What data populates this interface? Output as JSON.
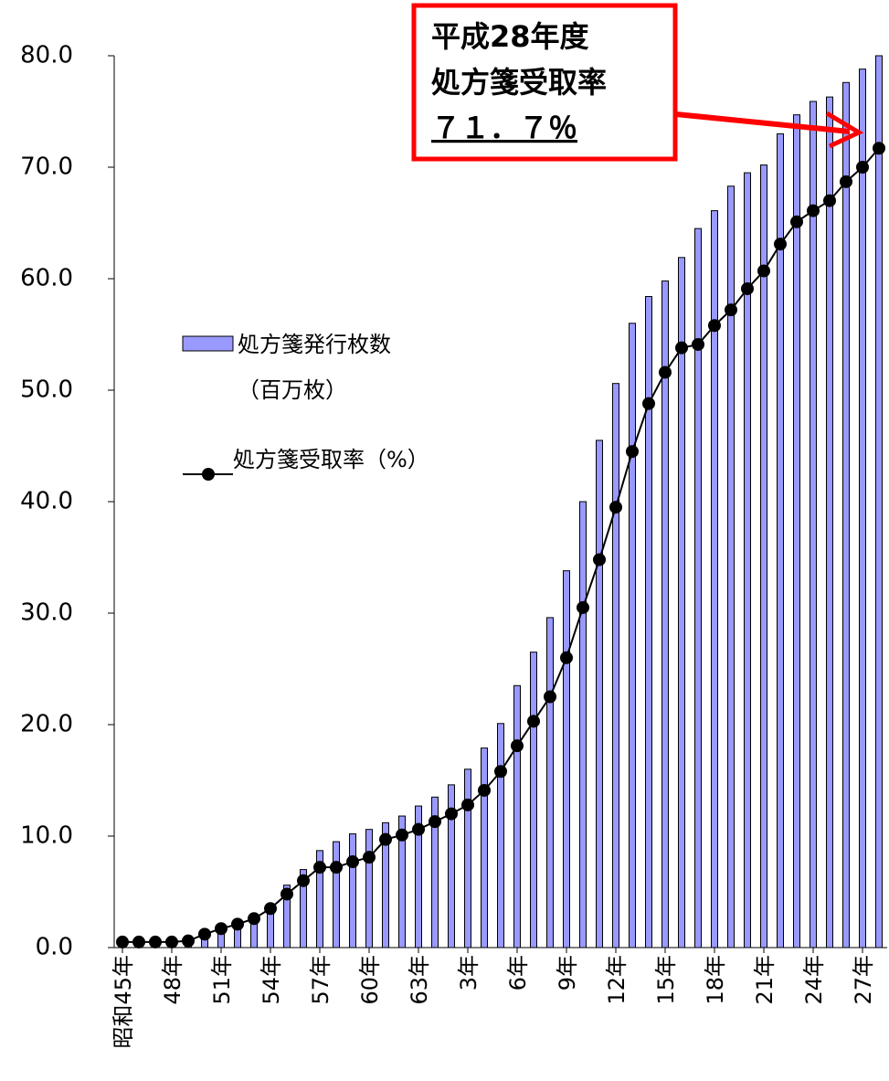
{
  "chart_data": {
    "type": "bar_line",
    "categories": [
      "昭和45年",
      null,
      null,
      "48年",
      null,
      null,
      "51年",
      null,
      null,
      "54年",
      null,
      null,
      "57年",
      null,
      null,
      "60年",
      null,
      null,
      "63年",
      null,
      null,
      "3年",
      null,
      null,
      "6年",
      null,
      null,
      "9年",
      null,
      null,
      "12年",
      null,
      null,
      "15年",
      null,
      null,
      "18年",
      null,
      null,
      "21年",
      null,
      null,
      "24年",
      null,
      null,
      "27年",
      null
    ],
    "series": [
      {
        "name": "処方箋発行枚数\n（百万枚）",
        "type": "bar",
        "color": "#9999ff",
        "values": [
          0.1,
          0.1,
          0.2,
          0.2,
          0.4,
          0.8,
          1.5,
          1.9,
          2.7,
          3.8,
          5.6,
          7.0,
          8.7,
          9.5,
          10.2,
          10.6,
          11.2,
          11.8,
          12.7,
          13.5,
          14.6,
          16.0,
          17.9,
          20.1,
          23.5,
          26.5,
          29.6,
          33.8,
          40.0,
          45.5,
          50.6,
          56.0,
          58.4,
          59.8,
          61.9,
          64.5,
          66.1,
          68.3,
          69.5,
          70.2,
          73.0,
          74.7,
          75.9,
          76.3,
          77.6,
          78.8,
          80.0
        ]
      },
      {
        "name": "処方箋受取率（%）",
        "type": "line",
        "color": "#000000",
        "values": [
          0.5,
          0.5,
          0.5,
          0.5,
          0.6,
          1.2,
          1.7,
          2.1,
          2.6,
          3.5,
          4.8,
          6.0,
          7.2,
          7.2,
          7.7,
          8.1,
          9.7,
          10.1,
          10.6,
          11.3,
          12.0,
          12.8,
          14.1,
          15.8,
          18.1,
          20.3,
          22.5,
          26.0,
          30.5,
          34.8,
          39.5,
          44.5,
          48.8,
          51.6,
          53.8,
          54.1,
          55.8,
          57.2,
          59.1,
          60.7,
          63.1,
          65.1,
          66.1,
          67.0,
          68.7,
          70.0,
          71.7
        ]
      }
    ],
    "ylim": [
      0,
      80
    ],
    "yticks": [
      {
        "value": 0,
        "label": "0.0"
      },
      {
        "value": 10,
        "label": "10.0"
      },
      {
        "value": 20,
        "label": "20.0"
      },
      {
        "value": 30,
        "label": "30.0"
      },
      {
        "value": 40,
        "label": "40.0"
      },
      {
        "value": 50,
        "label": "50.0"
      },
      {
        "value": 60,
        "label": "60.0"
      },
      {
        "value": 70,
        "label": "70.0"
      },
      {
        "value": 80,
        "label": "80.0"
      }
    ],
    "annotation": {
      "lines": [
        "平成28年度",
        "処方箋受取率",
        "７１．７％"
      ],
      "color": "#ff0000"
    }
  }
}
